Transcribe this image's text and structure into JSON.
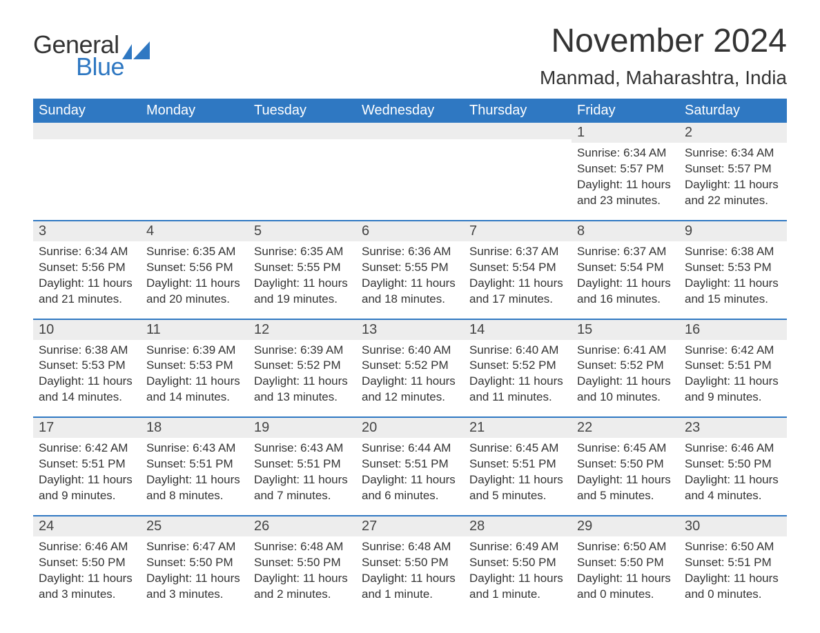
{
  "logo": {
    "word1": "General",
    "word2": "Blue",
    "accent_color": "#2f78c2"
  },
  "title": "November 2024",
  "location": "Manmad, Maharashtra, India",
  "header_color": "#2f78c2",
  "weekdays": [
    "Sunday",
    "Monday",
    "Tuesday",
    "Wednesday",
    "Thursday",
    "Friday",
    "Saturday"
  ],
  "weeks": [
    [
      null,
      null,
      null,
      null,
      null,
      {
        "n": "1",
        "sunrise": "6:34 AM",
        "sunset": "5:57 PM",
        "daylight": "11 hours and 23 minutes."
      },
      {
        "n": "2",
        "sunrise": "6:34 AM",
        "sunset": "5:57 PM",
        "daylight": "11 hours and 22 minutes."
      }
    ],
    [
      {
        "n": "3",
        "sunrise": "6:34 AM",
        "sunset": "5:56 PM",
        "daylight": "11 hours and 21 minutes."
      },
      {
        "n": "4",
        "sunrise": "6:35 AM",
        "sunset": "5:56 PM",
        "daylight": "11 hours and 20 minutes."
      },
      {
        "n": "5",
        "sunrise": "6:35 AM",
        "sunset": "5:55 PM",
        "daylight": "11 hours and 19 minutes."
      },
      {
        "n": "6",
        "sunrise": "6:36 AM",
        "sunset": "5:55 PM",
        "daylight": "11 hours and 18 minutes."
      },
      {
        "n": "7",
        "sunrise": "6:37 AM",
        "sunset": "5:54 PM",
        "daylight": "11 hours and 17 minutes."
      },
      {
        "n": "8",
        "sunrise": "6:37 AM",
        "sunset": "5:54 PM",
        "daylight": "11 hours and 16 minutes."
      },
      {
        "n": "9",
        "sunrise": "6:38 AM",
        "sunset": "5:53 PM",
        "daylight": "11 hours and 15 minutes."
      }
    ],
    [
      {
        "n": "10",
        "sunrise": "6:38 AM",
        "sunset": "5:53 PM",
        "daylight": "11 hours and 14 minutes."
      },
      {
        "n": "11",
        "sunrise": "6:39 AM",
        "sunset": "5:53 PM",
        "daylight": "11 hours and 14 minutes."
      },
      {
        "n": "12",
        "sunrise": "6:39 AM",
        "sunset": "5:52 PM",
        "daylight": "11 hours and 13 minutes."
      },
      {
        "n": "13",
        "sunrise": "6:40 AM",
        "sunset": "5:52 PM",
        "daylight": "11 hours and 12 minutes."
      },
      {
        "n": "14",
        "sunrise": "6:40 AM",
        "sunset": "5:52 PM",
        "daylight": "11 hours and 11 minutes."
      },
      {
        "n": "15",
        "sunrise": "6:41 AM",
        "sunset": "5:52 PM",
        "daylight": "11 hours and 10 minutes."
      },
      {
        "n": "16",
        "sunrise": "6:42 AM",
        "sunset": "5:51 PM",
        "daylight": "11 hours and 9 minutes."
      }
    ],
    [
      {
        "n": "17",
        "sunrise": "6:42 AM",
        "sunset": "5:51 PM",
        "daylight": "11 hours and 9 minutes."
      },
      {
        "n": "18",
        "sunrise": "6:43 AM",
        "sunset": "5:51 PM",
        "daylight": "11 hours and 8 minutes."
      },
      {
        "n": "19",
        "sunrise": "6:43 AM",
        "sunset": "5:51 PM",
        "daylight": "11 hours and 7 minutes."
      },
      {
        "n": "20",
        "sunrise": "6:44 AM",
        "sunset": "5:51 PM",
        "daylight": "11 hours and 6 minutes."
      },
      {
        "n": "21",
        "sunrise": "6:45 AM",
        "sunset": "5:51 PM",
        "daylight": "11 hours and 5 minutes."
      },
      {
        "n": "22",
        "sunrise": "6:45 AM",
        "sunset": "5:50 PM",
        "daylight": "11 hours and 5 minutes."
      },
      {
        "n": "23",
        "sunrise": "6:46 AM",
        "sunset": "5:50 PM",
        "daylight": "11 hours and 4 minutes."
      }
    ],
    [
      {
        "n": "24",
        "sunrise": "6:46 AM",
        "sunset": "5:50 PM",
        "daylight": "11 hours and 3 minutes."
      },
      {
        "n": "25",
        "sunrise": "6:47 AM",
        "sunset": "5:50 PM",
        "daylight": "11 hours and 3 minutes."
      },
      {
        "n": "26",
        "sunrise": "6:48 AM",
        "sunset": "5:50 PM",
        "daylight": "11 hours and 2 minutes."
      },
      {
        "n": "27",
        "sunrise": "6:48 AM",
        "sunset": "5:50 PM",
        "daylight": "11 hours and 1 minute."
      },
      {
        "n": "28",
        "sunrise": "6:49 AM",
        "sunset": "5:50 PM",
        "daylight": "11 hours and 1 minute."
      },
      {
        "n": "29",
        "sunrise": "6:50 AM",
        "sunset": "5:50 PM",
        "daylight": "11 hours and 0 minutes."
      },
      {
        "n": "30",
        "sunrise": "6:50 AM",
        "sunset": "5:51 PM",
        "daylight": "11 hours and 0 minutes."
      }
    ]
  ],
  "labels": {
    "sunrise": "Sunrise:",
    "sunset": "Sunset:",
    "daylight": "Daylight:"
  }
}
